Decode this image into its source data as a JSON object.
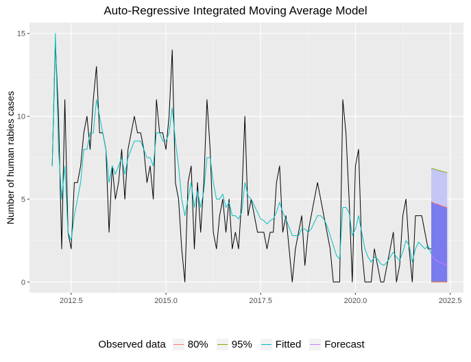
{
  "chart_data": {
    "type": "line",
    "title": "Auto-Regressive Integrated Moving Average Model",
    "xlabel": "",
    "ylabel": "Number of human rabies cases",
    "xlim": [
      2011.4,
      2022.85
    ],
    "ylim": [
      -0.65,
      15.65
    ],
    "x_ticks": [
      2012.5,
      2015.0,
      2017.5,
      2020.0,
      2022.5
    ],
    "x_tick_labels": [
      "2012.5",
      "2015.0",
      "2017.5",
      "2020.0",
      "2022.5"
    ],
    "y_ticks": [
      0,
      5,
      10,
      15
    ],
    "y_tick_labels": [
      "0",
      "5",
      "10",
      "15"
    ],
    "grid": true,
    "legend_position": "bottom",
    "legend_title": "Observed data",
    "legend": [
      {
        "label": "80%",
        "color": "#F8766D"
      },
      {
        "label": "95%",
        "color": "#7CAE00"
      },
      {
        "label": "Fitted",
        "color": "#00BFC4"
      },
      {
        "label": "Forecast",
        "color": "#C77CFF"
      }
    ],
    "series": [
      {
        "name": "Observed data",
        "color": "#000000",
        "x_start": 2012.0,
        "x_step": 0.08333,
        "values": [
          7,
          14.5,
          10,
          2,
          11,
          3,
          2,
          6,
          6,
          7,
          9,
          10,
          8,
          11,
          13,
          9,
          9,
          8,
          3,
          7,
          5,
          6,
          8,
          5,
          8,
          9,
          10,
          9,
          9,
          8,
          6,
          7,
          5,
          11,
          9,
          9,
          8,
          10,
          14,
          6,
          5,
          2,
          0,
          6,
          7,
          2,
          6,
          3,
          6,
          11,
          8,
          3,
          2,
          4,
          5,
          3,
          5,
          2,
          3,
          2,
          5,
          10,
          4,
          5,
          4,
          3,
          3,
          3,
          2,
          3,
          3,
          6,
          7,
          3,
          4,
          2,
          0,
          2,
          3,
          4,
          1,
          3,
          4,
          5,
          6,
          5,
          4,
          3,
          2,
          0,
          0,
          0,
          11,
          9,
          5,
          0,
          7,
          8,
          2,
          0,
          0,
          0,
          2,
          1,
          0,
          0,
          1,
          2,
          3,
          0,
          1,
          4,
          5,
          2,
          0,
          4,
          4,
          4,
          3,
          2,
          2
        ]
      },
      {
        "name": "Fitted",
        "color": "#00BFC4",
        "x_start": 2012.0,
        "x_step": 0.08333,
        "values": [
          7,
          15,
          8,
          5,
          7,
          3,
          2.5,
          4,
          5,
          6,
          8,
          8,
          9,
          9,
          11,
          10,
          9,
          8,
          6,
          7,
          6.5,
          7,
          7.5,
          6.5,
          7.5,
          8,
          8.5,
          8.5,
          8.5,
          8,
          7.5,
          7.5,
          7,
          9,
          9,
          8.5,
          8.5,
          9,
          10.5,
          8.5,
          7,
          5,
          4,
          5,
          6,
          4.5,
          5.5,
          4.5,
          5.5,
          7.5,
          7.5,
          6,
          5,
          5,
          5.3,
          4.5,
          4.8,
          4,
          4,
          3.8,
          4.2,
          6,
          5.2,
          5,
          4.6,
          4.2,
          3.8,
          3.7,
          3.5,
          3.7,
          3.8,
          4.2,
          4.8,
          4.2,
          3.8,
          3.3,
          2.8,
          2.8,
          2.8,
          3.2,
          3.2,
          3,
          3.2,
          3.6,
          4,
          4,
          3.8,
          3.4,
          2.8,
          2.2,
          1.6,
          1.4,
          4.5,
          4.5,
          4.2,
          2.8,
          3.2,
          4,
          3,
          2,
          1.5,
          1.2,
          1.5,
          1.4,
          1.1,
          1,
          1.2,
          1.5,
          1.8,
          1.5,
          1.3,
          1.8,
          2.5,
          2.2,
          1.2,
          2,
          2.4,
          2.2,
          2,
          2.2,
          1.7
        ]
      }
    ],
    "forecast": {
      "x": [
        2022.0,
        2022.08,
        2022.17,
        2022.25,
        2022.33,
        2022.42
      ],
      "mean": [
        1.6,
        1.4,
        1.25,
        1.15,
        1.08,
        1.02
      ],
      "lo80": [
        0,
        0,
        0,
        0,
        0,
        0
      ],
      "hi80": [
        4.85,
        4.75,
        4.7,
        4.62,
        4.55,
        4.5
      ],
      "lo95": [
        0,
        0,
        0,
        0,
        0,
        0
      ],
      "hi95": [
        6.85,
        6.82,
        6.75,
        6.7,
        6.65,
        6.6
      ]
    }
  }
}
